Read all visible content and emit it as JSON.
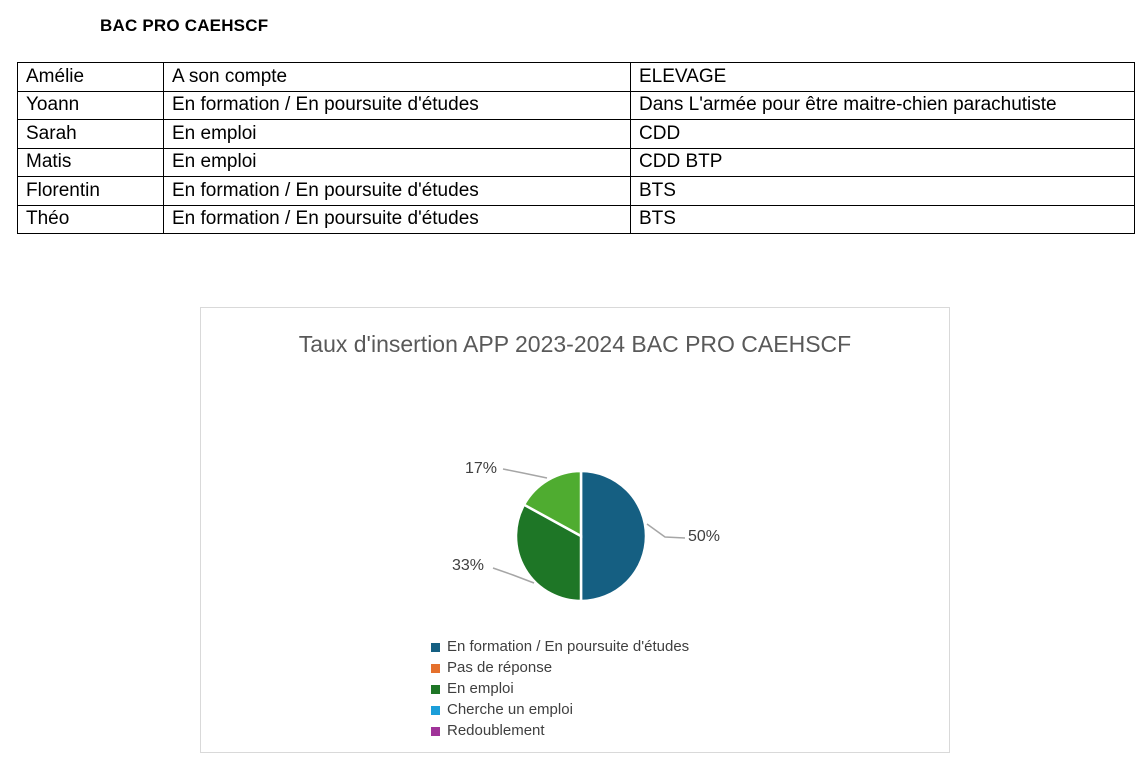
{
  "page": {
    "heading": "BAC PRO CAEHSCF"
  },
  "table": {
    "rows": [
      [
        "Amélie",
        "A son compte",
        "ELEVAGE"
      ],
      [
        "Yoann",
        "En formation / En poursuite d'études",
        "Dans L'armée pour être maitre-chien parachutiste"
      ],
      [
        "Sarah",
        "En emploi",
        "CDD"
      ],
      [
        "Matis",
        "En emploi",
        "CDD BTP"
      ],
      [
        "Florentin",
        "En formation / En poursuite d'études",
        "BTS"
      ],
      [
        "Théo",
        "En formation / En poursuite d'études",
        "BTS"
      ]
    ]
  },
  "chart_data": {
    "type": "pie",
    "title": "Taux d'insertion APP 2023-2024 BAC PRO CAEHSCF",
    "start_angle_deg": -90,
    "slices": [
      {
        "label": "En formation / En poursuite d'études",
        "value": 50,
        "percent_label": "50%",
        "color": "#155f82"
      },
      {
        "label": "En emploi",
        "value": 33,
        "percent_label": "33%",
        "color": "#1e7626"
      },
      {
        "label": null,
        "value": 17,
        "percent_label": "17%",
        "color": "#4fac30"
      }
    ],
    "legend": [
      {
        "label": "En formation / En poursuite d'études",
        "color": "#155f82"
      },
      {
        "label": "Pas de réponse",
        "color": "#e5702c"
      },
      {
        "label": "En emploi",
        "color": "#1e7626"
      },
      {
        "label": "Cherche un emploi",
        "color": "#1b9ed9"
      },
      {
        "label": "Redoublement",
        "color": "#a03399"
      }
    ],
    "legend_position": "bottom-left",
    "leader_line_color": "#a6a6a6"
  }
}
